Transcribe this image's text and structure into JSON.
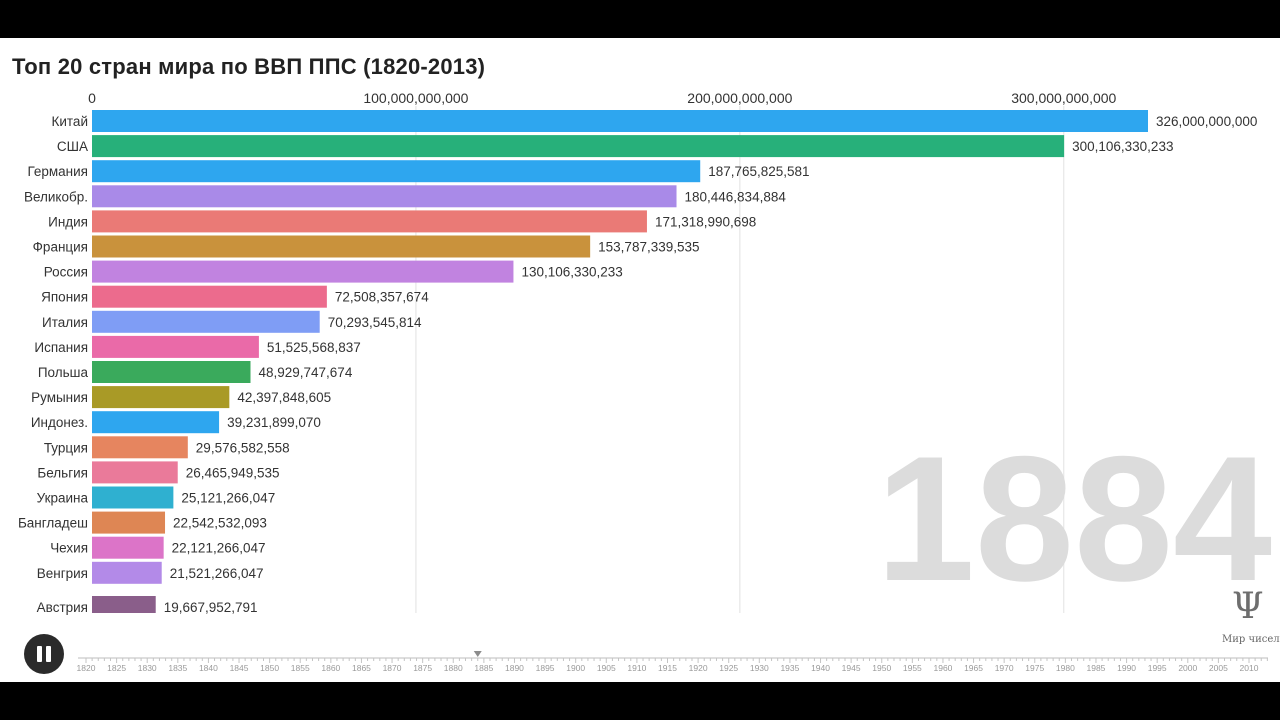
{
  "title": "Топ 20 стран мира по ВВП ППС (1820-2013)",
  "current_year": "1884",
  "brand": {
    "symbol": "Ψ",
    "name": "Мир чисел"
  },
  "controls": {
    "pause_label": "pause"
  },
  "chart_data": {
    "type": "bar",
    "orientation": "horizontal",
    "title": "Топ 20 стран мира по ВВП ППС (1820-2013)",
    "xlim": [
      0,
      326000000000
    ],
    "x_ticks": [
      0,
      100000000000,
      200000000000,
      300000000000
    ],
    "x_tick_labels": [
      "0",
      "100,000,000,000",
      "200,000,000,000",
      "300,000,000,000"
    ],
    "grid": true,
    "bars": [
      {
        "label": "Китай",
        "value": 326000000000,
        "value_label": "326,000,000,000",
        "color": "#2ea6ef"
      },
      {
        "label": "США",
        "value": 300106330233,
        "value_label": "300,106,330,233",
        "color": "#27b07a"
      },
      {
        "label": "Германия",
        "value": 187765825581,
        "value_label": "187,765,825,581",
        "color": "#2ea6ef"
      },
      {
        "label": "Великобр.",
        "value": 180446834884,
        "value_label": "180,446,834,884",
        "color": "#a98ae8"
      },
      {
        "label": "Индия",
        "value": 171318990698,
        "value_label": "171,318,990,698",
        "color": "#ea7a76"
      },
      {
        "label": "Франция",
        "value": 153787339535,
        "value_label": "153,787,339,535",
        "color": "#c9923c"
      },
      {
        "label": "Россия",
        "value": 130106330233,
        "value_label": "130,106,330,233",
        "color": "#c183e0"
      },
      {
        "label": "Япония",
        "value": 72508357674,
        "value_label": "72,508,357,674",
        "color": "#ec6b8d"
      },
      {
        "label": "Италия",
        "value": 70293545814,
        "value_label": "70,293,545,814",
        "color": "#7f9df5"
      },
      {
        "label": "Испания",
        "value": 51525568837,
        "value_label": "51,525,568,837",
        "color": "#ea6aa8"
      },
      {
        "label": "Польша",
        "value": 48929747674,
        "value_label": "48,929,747,674",
        "color": "#3aaa5c"
      },
      {
        "label": "Румыния",
        "value": 42397848605,
        "value_label": "42,397,848,605",
        "color": "#a99a26"
      },
      {
        "label": "Индонез.",
        "value": 39231899070,
        "value_label": "39,231,899,070",
        "color": "#2ea6ef"
      },
      {
        "label": "Турция",
        "value": 29576582558,
        "value_label": "29,576,582,558",
        "color": "#e6855f"
      },
      {
        "label": "Бельгия",
        "value": 26465949535,
        "value_label": "26,465,949,535",
        "color": "#ea7a9a"
      },
      {
        "label": "Украина",
        "value": 25121266047,
        "value_label": "25,121,266,047",
        "color": "#2fb0d0"
      },
      {
        "label": "Бангладеш",
        "value": 22542532093,
        "value_label": "22,542,532,093",
        "color": "#de8654"
      },
      {
        "label": "Чехия",
        "value": 22121266047,
        "value_label": "22,121,266,047",
        "color": "#dc74c8"
      },
      {
        "label": "Венгрия",
        "value": 21521266047,
        "value_label": "21,521,266,047",
        "color": "#b38ae8"
      },
      {
        "label": "Австрия",
        "value": 19667952791,
        "value_label": "19,667,952,791",
        "color": "#8a5e8a"
      }
    ],
    "timeline": {
      "start": 1820,
      "end": 2013,
      "current": 1884,
      "labels": [
        "1820",
        "1825",
        "1830",
        "1835",
        "1840",
        "1845",
        "1850",
        "1855",
        "1860",
        "1865",
        "1870",
        "1875",
        "1880",
        "1885",
        "1890",
        "1895",
        "1900",
        "1905",
        "1910",
        "1915",
        "1920",
        "1925",
        "1930",
        "1935",
        "1940",
        "1945",
        "1950",
        "1955",
        "1960",
        "1965",
        "1970",
        "1975",
        "1980",
        "1985",
        "1990",
        "1995",
        "2000",
        "2005",
        "2010"
      ]
    }
  }
}
